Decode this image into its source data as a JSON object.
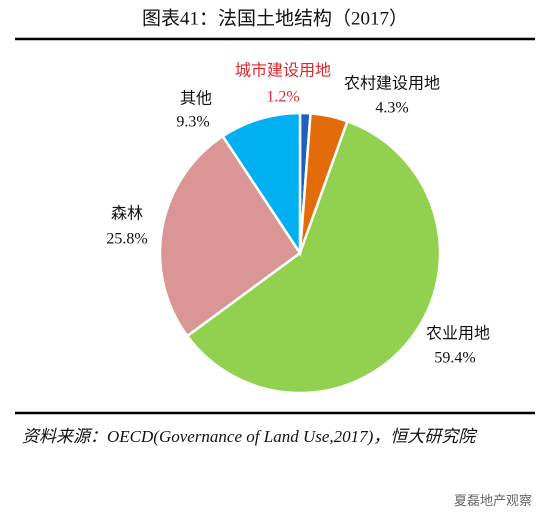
{
  "chart_data": {
    "type": "pie",
    "title": "图表41：法国土地结构（2017）",
    "categories": [
      "城市建设用地",
      "农村建设用地",
      "农业用地",
      "森林",
      "其他"
    ],
    "values": [
      1.2,
      4.3,
      59.4,
      25.8,
      9.3
    ],
    "value_labels": [
      "1.2%",
      "4.3%",
      "59.4%",
      "25.8%",
      "9.3%"
    ],
    "colors": [
      "#1f5fbf",
      "#e36c0a",
      "#92d050",
      "#d99694",
      "#00b0f0"
    ],
    "highlight_color": "#e0262c",
    "source": "资料来源：OECD(Governance of Land Use,2017)，恒大研究院",
    "watermark": "夏磊地产观察"
  }
}
